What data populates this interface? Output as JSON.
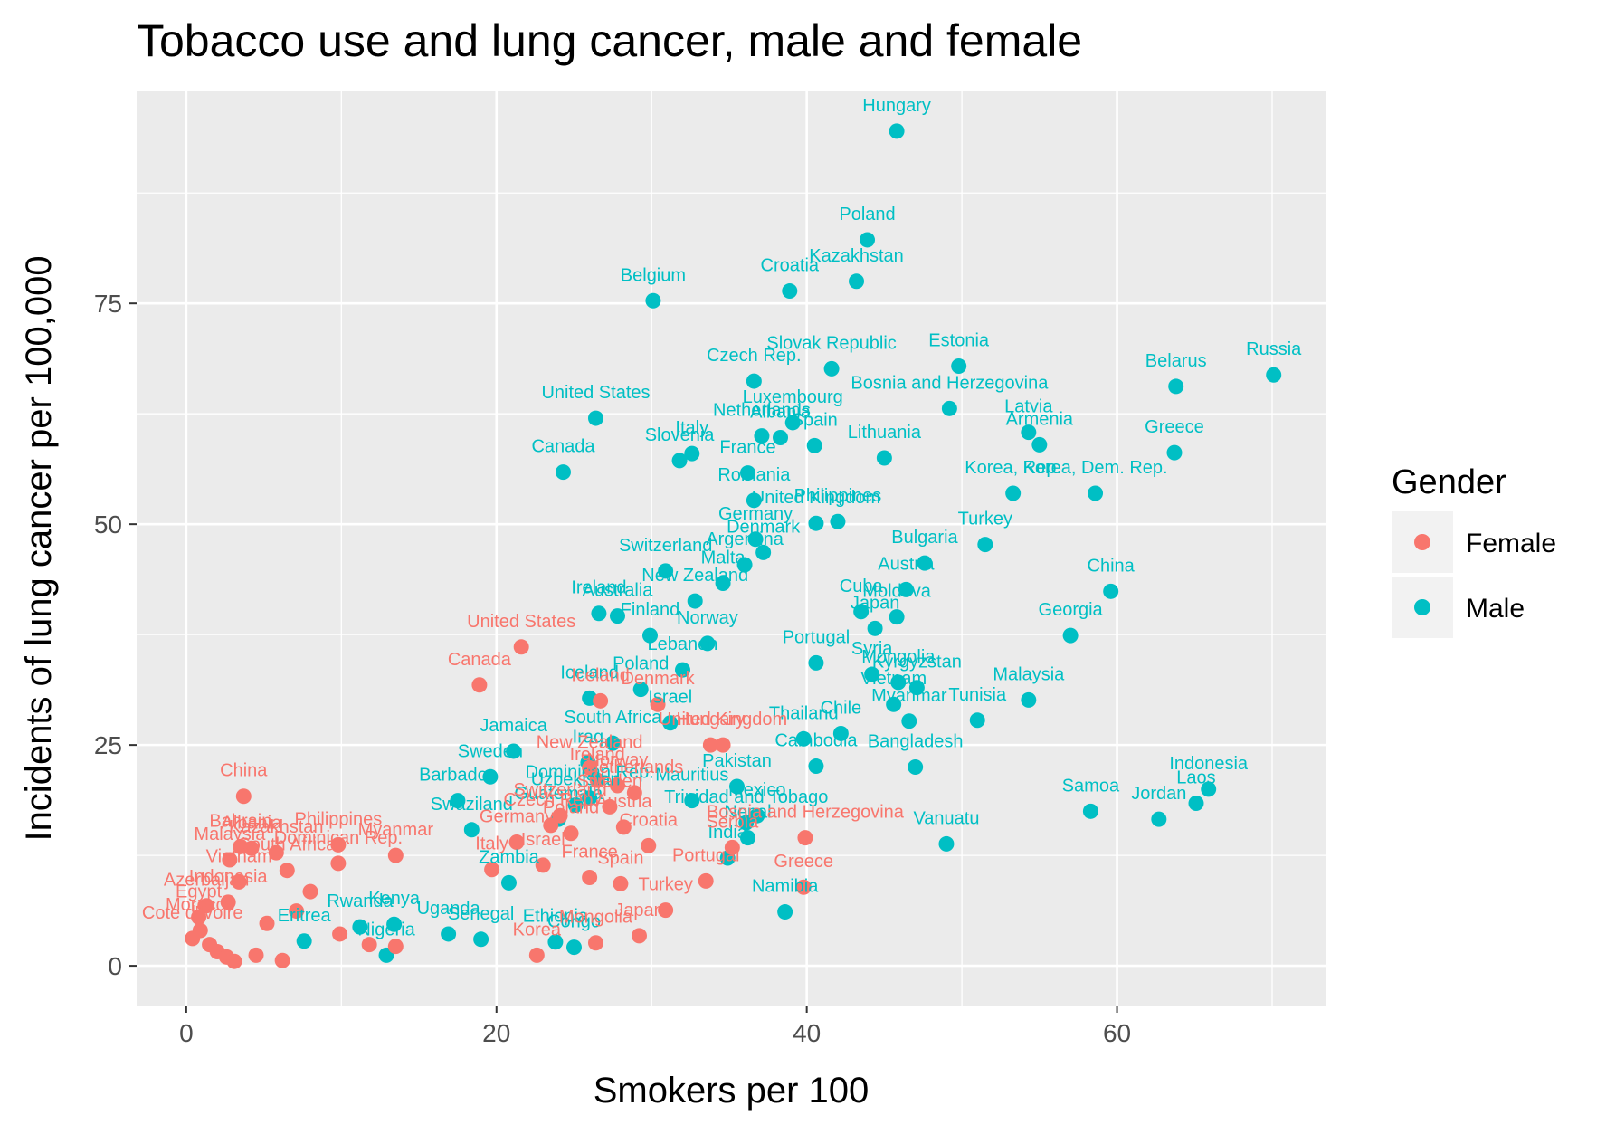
{
  "chart_data": {
    "type": "scatter",
    "title": "Tobacco use and lung cancer, male and female",
    "xlabel": "Smokers per 100",
    "ylabel": "Incidents of lung cancer per 100,000",
    "xlim": [
      -3.2,
      73.5
    ],
    "ylim": [
      -4.5,
      99.0
    ],
    "xticks": [
      0,
      20,
      40,
      60
    ],
    "yticks": [
      0,
      25,
      50,
      75
    ],
    "grid": true,
    "legend": {
      "title": "Gender",
      "position": "right",
      "entries": [
        {
          "name": "Female",
          "color": "#F8766D"
        },
        {
          "name": "Male",
          "color": "#00BFC4"
        }
      ]
    },
    "series": [
      {
        "name": "Male",
        "color": "#00BFC4",
        "points": [
          {
            "x": 45.8,
            "y": 94.5,
            "label": "Hungary"
          },
          {
            "x": 43.9,
            "y": 82.2,
            "label": "Poland"
          },
          {
            "x": 43.2,
            "y": 77.5,
            "label": "Kazakhstan"
          },
          {
            "x": 38.9,
            "y": 76.4,
            "label": "Croatia"
          },
          {
            "x": 30.1,
            "y": 75.3,
            "label": "Belgium"
          },
          {
            "x": 41.6,
            "y": 67.6,
            "label": "Slovak Republic"
          },
          {
            "x": 49.8,
            "y": 67.9,
            "label": "Estonia"
          },
          {
            "x": 36.6,
            "y": 66.2,
            "label": "Czech Rep."
          },
          {
            "x": 70.1,
            "y": 66.9,
            "label": "Russia"
          },
          {
            "x": 63.8,
            "y": 65.6,
            "label": "Belarus"
          },
          {
            "x": 49.2,
            "y": 63.1,
            "label": "Bosnia and Herzegovina"
          },
          {
            "x": 26.4,
            "y": 62.0,
            "label": "United States"
          },
          {
            "x": 54.3,
            "y": 60.4,
            "label": "Latvia"
          },
          {
            "x": 55.0,
            "y": 59.0,
            "label": "Armenia"
          },
          {
            "x": 39.1,
            "y": 61.5,
            "label": "Luxembourg"
          },
          {
            "x": 37.1,
            "y": 60.0,
            "label": "Netherlands"
          },
          {
            "x": 38.3,
            "y": 59.8,
            "label": "Albania"
          },
          {
            "x": 40.5,
            "y": 58.9,
            "label": "Spain"
          },
          {
            "x": 32.6,
            "y": 58.0,
            "label": "Italy"
          },
          {
            "x": 31.8,
            "y": 57.2,
            "label": "Slovenia"
          },
          {
            "x": 45.0,
            "y": 57.5,
            "label": "Lithuania"
          },
          {
            "x": 24.3,
            "y": 55.9,
            "label": "Canada"
          },
          {
            "x": 63.7,
            "y": 58.1,
            "label": "Greece"
          },
          {
            "x": 53.3,
            "y": 53.5,
            "label": "Korea, Rep."
          },
          {
            "x": 58.6,
            "y": 53.5,
            "label": "Korea, Dem. Rep."
          },
          {
            "x": 36.2,
            "y": 55.8,
            "label": "France"
          },
          {
            "x": 36.6,
            "y": 52.7,
            "label": "Romania"
          },
          {
            "x": 42.0,
            "y": 50.3,
            "label": "Philippines"
          },
          {
            "x": 40.6,
            "y": 50.1,
            "label": "United Kingdom"
          },
          {
            "x": 36.7,
            "y": 48.3,
            "label": "Germany"
          },
          {
            "x": 37.2,
            "y": 46.8,
            "label": "Denmark"
          },
          {
            "x": 51.5,
            "y": 47.7,
            "label": "Turkey"
          },
          {
            "x": 47.6,
            "y": 45.6,
            "label": "Bulgaria"
          },
          {
            "x": 30.9,
            "y": 44.7,
            "label": "Switzerland"
          },
          {
            "x": 36.0,
            "y": 45.4,
            "label": "Argentina"
          },
          {
            "x": 34.6,
            "y": 43.3,
            "label": "Malta"
          },
          {
            "x": 59.6,
            "y": 42.4,
            "label": "China"
          },
          {
            "x": 46.4,
            "y": 42.6,
            "label": "Austria"
          },
          {
            "x": 32.8,
            "y": 41.3,
            "label": "New Zealand"
          },
          {
            "x": 26.6,
            "y": 39.9,
            "label": "Ireland"
          },
          {
            "x": 27.8,
            "y": 39.6,
            "label": "Australia"
          },
          {
            "x": 43.5,
            "y": 40.1,
            "label": "Cuba"
          },
          {
            "x": 45.8,
            "y": 39.5,
            "label": "Moldova"
          },
          {
            "x": 57.0,
            "y": 37.4,
            "label": "Georgia"
          },
          {
            "x": 44.4,
            "y": 38.2,
            "label": "Japan"
          },
          {
            "x": 33.6,
            "y": 36.5,
            "label": "Norway"
          },
          {
            "x": 29.9,
            "y": 37.4,
            "label": "Finland"
          },
          {
            "x": 40.6,
            "y": 34.3,
            "label": "Portugal"
          },
          {
            "x": 32.0,
            "y": 33.5,
            "label": "Lebanon"
          },
          {
            "x": 44.2,
            "y": 33.0,
            "label": "Syria"
          },
          {
            "x": 45.9,
            "y": 32.1,
            "label": "Mongolia"
          },
          {
            "x": 47.1,
            "y": 31.5,
            "label": "Kyrgyzstan"
          },
          {
            "x": 29.3,
            "y": 31.3,
            "label": "Poland"
          },
          {
            "x": 26.0,
            "y": 30.3,
            "label": "Iceland"
          },
          {
            "x": 45.6,
            "y": 29.6,
            "label": "Vietnam"
          },
          {
            "x": 54.3,
            "y": 30.1,
            "label": "Malaysia"
          },
          {
            "x": 46.6,
            "y": 27.7,
            "label": "Myanmar"
          },
          {
            "x": 51.0,
            "y": 27.8,
            "label": "Tunisia"
          },
          {
            "x": 31.2,
            "y": 27.5,
            "label": "Israel"
          },
          {
            "x": 21.1,
            "y": 24.3,
            "label": "Jamaica"
          },
          {
            "x": 27.5,
            "y": 25.2,
            "label": "South Africa"
          },
          {
            "x": 42.2,
            "y": 26.3,
            "label": "Chile"
          },
          {
            "x": 39.8,
            "y": 25.7,
            "label": "Thailand"
          },
          {
            "x": 40.6,
            "y": 22.6,
            "label": "Cambodia"
          },
          {
            "x": 47.0,
            "y": 22.5,
            "label": "Bangladesh"
          },
          {
            "x": 25.9,
            "y": 23.0,
            "label": "Iraq"
          },
          {
            "x": 19.6,
            "y": 21.4,
            "label": "Sweden"
          },
          {
            "x": 35.5,
            "y": 20.3,
            "label": "Pakistan"
          },
          {
            "x": 36.8,
            "y": 17.0,
            "label": "Mexico"
          },
          {
            "x": 65.9,
            "y": 20.0,
            "label": "Indonesia"
          },
          {
            "x": 65.1,
            "y": 18.4,
            "label": "Laos"
          },
          {
            "x": 62.7,
            "y": 16.6,
            "label": "Jordan"
          },
          {
            "x": 58.3,
            "y": 17.5,
            "label": "Samoa"
          },
          {
            "x": 32.6,
            "y": 18.7,
            "label": "Mauritius"
          },
          {
            "x": 17.5,
            "y": 18.7,
            "label": "Barbados"
          },
          {
            "x": 26.0,
            "y": 19.0,
            "label": "Dominican Rep."
          },
          {
            "x": 25.1,
            "y": 18.2,
            "label": "Uzbekistan"
          },
          {
            "x": 24.0,
            "y": 16.6,
            "label": "Guatemala"
          },
          {
            "x": 36.1,
            "y": 16.2,
            "label": "Trinidad and Tobago"
          },
          {
            "x": 36.2,
            "y": 14.5,
            "label": "Nepal"
          },
          {
            "x": 49.0,
            "y": 13.8,
            "label": "Vanuatu"
          },
          {
            "x": 34.9,
            "y": 12.2,
            "label": "India"
          },
          {
            "x": 38.6,
            "y": 6.1,
            "label": "Namibia"
          },
          {
            "x": 18.4,
            "y": 15.4,
            "label": "Swaziland"
          },
          {
            "x": 20.8,
            "y": 9.4,
            "label": "Zambia"
          },
          {
            "x": 19.0,
            "y": 3.0,
            "label": "Senegal"
          },
          {
            "x": 23.8,
            "y": 2.7,
            "label": "Ethiopia"
          },
          {
            "x": 7.6,
            "y": 2.8,
            "label": "Eritrea"
          },
          {
            "x": 12.9,
            "y": 1.2,
            "label": "Nigeria"
          },
          {
            "x": 11.2,
            "y": 4.4,
            "label": "Rwanda"
          },
          {
            "x": 13.4,
            "y": 4.7,
            "label": "Kenya"
          },
          {
            "x": 16.9,
            "y": 3.6,
            "label": "Uganda"
          },
          {
            "x": 25.0,
            "y": 2.1,
            "label": "Congo"
          }
        ]
      },
      {
        "name": "Female",
        "color": "#F8766D",
        "points": [
          {
            "x": 21.6,
            "y": 36.1,
            "label": "United States"
          },
          {
            "x": 18.9,
            "y": 31.8,
            "label": "Canada"
          },
          {
            "x": 26.7,
            "y": 30.0,
            "label": "Iceland"
          },
          {
            "x": 30.4,
            "y": 29.6,
            "label": "Denmark"
          },
          {
            "x": 33.8,
            "y": 25.0,
            "label": "Hungary"
          },
          {
            "x": 34.6,
            "y": 25.0,
            "label": "United Kingdom"
          },
          {
            "x": 26.0,
            "y": 22.4,
            "label": "New Zealand"
          },
          {
            "x": 26.5,
            "y": 21.0,
            "label": "Ireland"
          },
          {
            "x": 27.8,
            "y": 20.4,
            "label": "Norway"
          },
          {
            "x": 28.9,
            "y": 19.6,
            "label": "Netherlands"
          },
          {
            "x": 27.3,
            "y": 18.0,
            "label": "Sweden"
          },
          {
            "x": 24.1,
            "y": 17.0,
            "label": "Switzerland"
          },
          {
            "x": 23.5,
            "y": 15.9,
            "label": "Czech Rep."
          },
          {
            "x": 24.8,
            "y": 15.0,
            "label": "Poland"
          },
          {
            "x": 28.2,
            "y": 15.7,
            "label": "Austria"
          },
          {
            "x": 39.9,
            "y": 14.5,
            "label": "Bosnia and Herzegovina"
          },
          {
            "x": 35.2,
            "y": 13.4,
            "label": "Serbia"
          },
          {
            "x": 29.8,
            "y": 13.6,
            "label": "Croatia"
          },
          {
            "x": 21.3,
            "y": 14.0,
            "label": "Germany"
          },
          {
            "x": 19.7,
            "y": 10.9,
            "label": "Italy"
          },
          {
            "x": 23.0,
            "y": 11.4,
            "label": "Israel"
          },
          {
            "x": 26.0,
            "y": 10.0,
            "label": "France"
          },
          {
            "x": 28.0,
            "y": 9.3,
            "label": "Spain"
          },
          {
            "x": 33.5,
            "y": 9.6,
            "label": "Portugal"
          },
          {
            "x": 39.8,
            "y": 8.9,
            "label": "Greece"
          },
          {
            "x": 30.9,
            "y": 6.3,
            "label": "Turkey"
          },
          {
            "x": 22.6,
            "y": 1.2,
            "label": "Korea"
          },
          {
            "x": 29.2,
            "y": 3.4,
            "label": "Japan"
          },
          {
            "x": 26.4,
            "y": 2.6,
            "label": "Mongolia"
          },
          {
            "x": 3.7,
            "y": 19.2,
            "label": "China"
          },
          {
            "x": 3.5,
            "y": 13.5,
            "label": "Bahrain"
          },
          {
            "x": 4.2,
            "y": 13.3,
            "label": "Albania"
          },
          {
            "x": 9.8,
            "y": 13.7,
            "label": "Philippines"
          },
          {
            "x": 13.5,
            "y": 12.5,
            "label": "Myanmar"
          },
          {
            "x": 5.8,
            "y": 12.8,
            "label": "Kazakhstan"
          },
          {
            "x": 2.8,
            "y": 12.0,
            "label": "Malaysia"
          },
          {
            "x": 9.8,
            "y": 11.6,
            "label": "Dominican Rep."
          },
          {
            "x": 6.5,
            "y": 10.8,
            "label": "South Africa"
          },
          {
            "x": 3.4,
            "y": 9.5,
            "label": "Vietnam"
          },
          {
            "x": 2.7,
            "y": 7.2,
            "label": "Indonesia"
          },
          {
            "x": 1.3,
            "y": 6.8,
            "label": "Azerbaijan"
          },
          {
            "x": 0.8,
            "y": 5.5,
            "label": "Egypt"
          },
          {
            "x": 0.9,
            "y": 4.0,
            "label": "Morocco"
          },
          {
            "x": 0.4,
            "y": 3.1,
            "label": "Cote d'Ivoire"
          },
          {
            "x": 1.5,
            "y": 2.4,
            "label": ""
          },
          {
            "x": 2.0,
            "y": 1.6,
            "label": ""
          },
          {
            "x": 2.6,
            "y": 1.0,
            "label": ""
          },
          {
            "x": 3.1,
            "y": 0.5,
            "label": ""
          },
          {
            "x": 4.5,
            "y": 1.2,
            "label": ""
          },
          {
            "x": 6.2,
            "y": 0.6,
            "label": ""
          },
          {
            "x": 9.9,
            "y": 3.6,
            "label": ""
          },
          {
            "x": 11.8,
            "y": 2.4,
            "label": ""
          },
          {
            "x": 13.5,
            "y": 2.2,
            "label": ""
          },
          {
            "x": 5.2,
            "y": 4.8,
            "label": ""
          },
          {
            "x": 7.1,
            "y": 6.2,
            "label": ""
          },
          {
            "x": 8.0,
            "y": 8.4,
            "label": ""
          }
        ]
      }
    ]
  }
}
